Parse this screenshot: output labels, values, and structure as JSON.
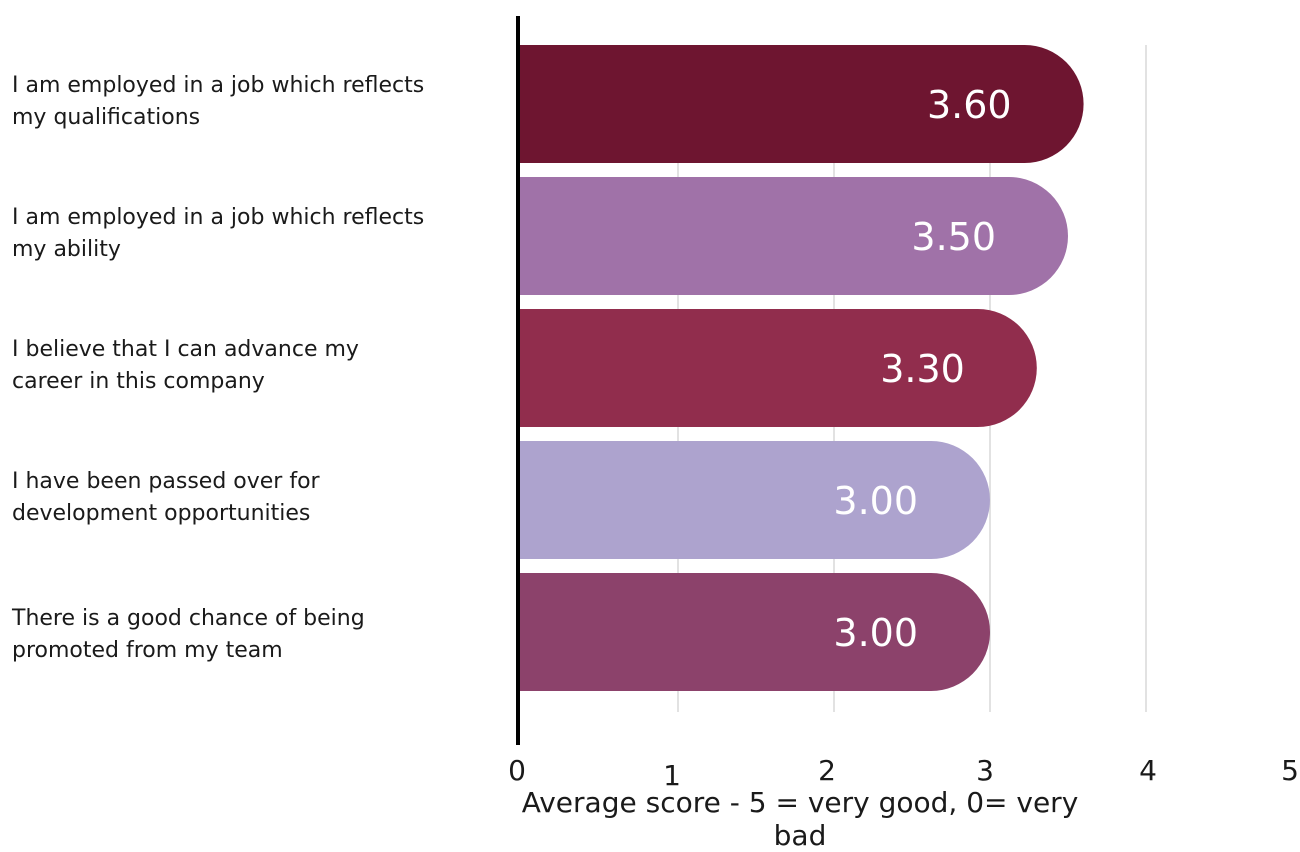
{
  "chart_data": {
    "type": "bar",
    "orientation": "horizontal",
    "categories": [
      "I am employed in a job which reflects my qualifications",
      "I am employed in a job which reflects my ability",
      "I believe that I can advance my career in this company",
      "I have been passed over for development opportunities",
      "There is a good chance of being promoted from my team"
    ],
    "category_lines": [
      [
        "I am employed in a job which reflects",
        "my qualifications"
      ],
      [
        "I am employed in a job which reflects",
        "my ability"
      ],
      [
        "I believe that I can advance my",
        "career in this company"
      ],
      [
        "I have been passed over for",
        "development opportunities"
      ],
      [
        "There is a good chance of being",
        "promoted from my team"
      ]
    ],
    "values": [
      3.6,
      3.5,
      3.3,
      3.0,
      3.0
    ],
    "data_labels": [
      "3.60",
      "3.50",
      "3.30",
      "3.00",
      "3.00"
    ],
    "colors": [
      "#6e1530",
      "#a072a8",
      "#912d4d",
      "#ada3ce",
      "#8c426b"
    ],
    "xlabel": "Average score - 5 = very good, 0= very bad",
    "ylabel": "",
    "xlim": [
      0,
      5
    ],
    "xticks": [
      "0",
      "1",
      "2",
      "3",
      "4",
      "5"
    ],
    "grid": "vertical"
  }
}
